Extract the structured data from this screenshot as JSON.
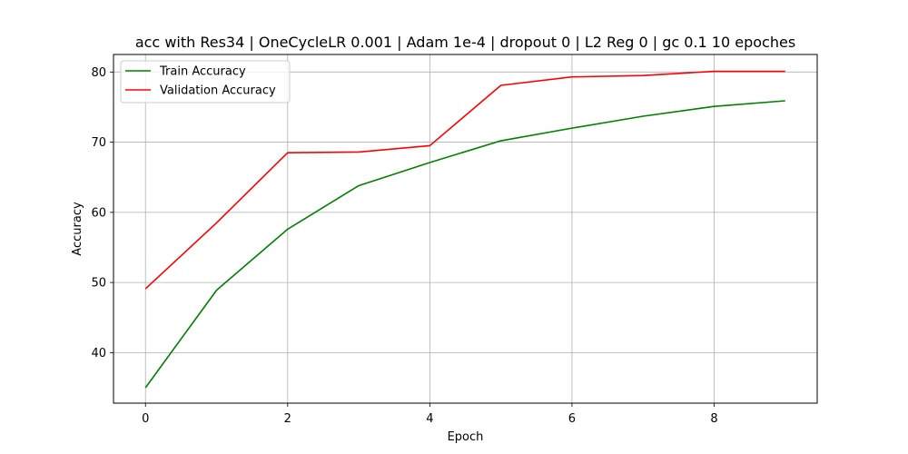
{
  "chart_data": {
    "type": "line",
    "title": "acc with Res34 | OneCycleLR 0.001 | Adam 1e-4 | dropout 0 | L2 Reg 0 | gc 0.1 10 epoches",
    "xlabel": "Epoch",
    "ylabel": "Accuracy",
    "x": [
      0,
      1,
      2,
      3,
      4,
      5,
      6,
      7,
      8,
      9
    ],
    "xlim": [
      -0.45,
      9.45
    ],
    "ylim": [
      32.8,
      82.5
    ],
    "xticks": [
      0,
      2,
      4,
      6,
      8
    ],
    "yticks": [
      40,
      50,
      60,
      70,
      80
    ],
    "grid": true,
    "legend_position": "upper-left",
    "series": [
      {
        "name": "Train Accuracy",
        "color": "#008000",
        "values": [
          35.0,
          48.9,
          57.6,
          63.8,
          67.1,
          70.2,
          72.0,
          73.7,
          75.1,
          75.9
        ]
      },
      {
        "name": "Validation Accuracy",
        "color": "#ff0000",
        "values": [
          49.1,
          58.5,
          68.5,
          68.6,
          69.5,
          78.1,
          79.3,
          79.5,
          80.1,
          80.1
        ]
      }
    ]
  }
}
